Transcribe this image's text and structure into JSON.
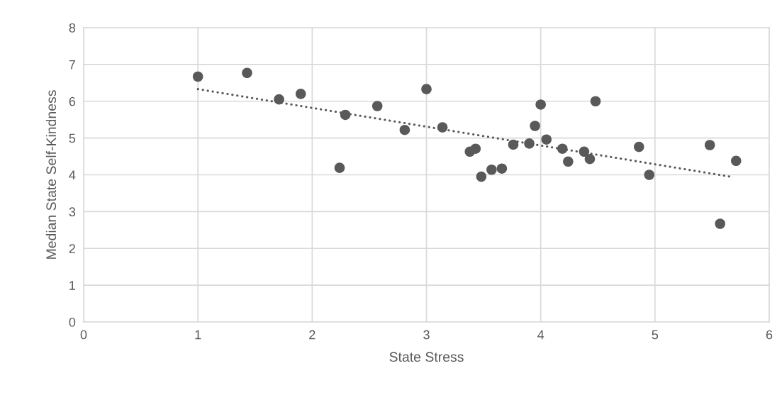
{
  "chart_data": {
    "type": "scatter",
    "xlabel": "State Stress",
    "ylabel": "Median State Self-Kindness",
    "xlim": [
      0,
      6
    ],
    "xticks": [
      0,
      1,
      2,
      3,
      4,
      5,
      6
    ],
    "ylim": [
      0,
      8
    ],
    "yticks": [
      0,
      1,
      2,
      3,
      4,
      5,
      6,
      7,
      8
    ],
    "grid": true,
    "series": [
      {
        "marker": "circle",
        "color": "#595959",
        "x": [
          1.0,
          1.43,
          1.71,
          1.9,
          2.29,
          2.57,
          2.81,
          2.24,
          3.0,
          3.14,
          3.38,
          3.43,
          3.48,
          3.57,
          3.66,
          3.76,
          3.9,
          3.95,
          4.0,
          4.05,
          4.19,
          4.24,
          4.38,
          4.43,
          4.48,
          4.86,
          4.95,
          5.48,
          5.57,
          5.71
        ],
        "values": [
          6.67,
          6.77,
          6.05,
          6.2,
          5.63,
          5.87,
          5.22,
          4.19,
          6.33,
          5.29,
          4.63,
          4.71,
          3.95,
          4.14,
          4.17,
          4.82,
          4.85,
          5.33,
          5.91,
          4.96,
          4.71,
          4.36,
          4.63,
          4.43,
          6.0,
          4.76,
          4.0,
          4.81,
          2.67,
          4.38
        ]
      },
      {
        "type": "line",
        "color": "#595959",
        "line_style": "dotted",
        "x": [
          1.0,
          5.68
        ],
        "values": [
          6.33,
          3.94
        ]
      }
    ]
  }
}
